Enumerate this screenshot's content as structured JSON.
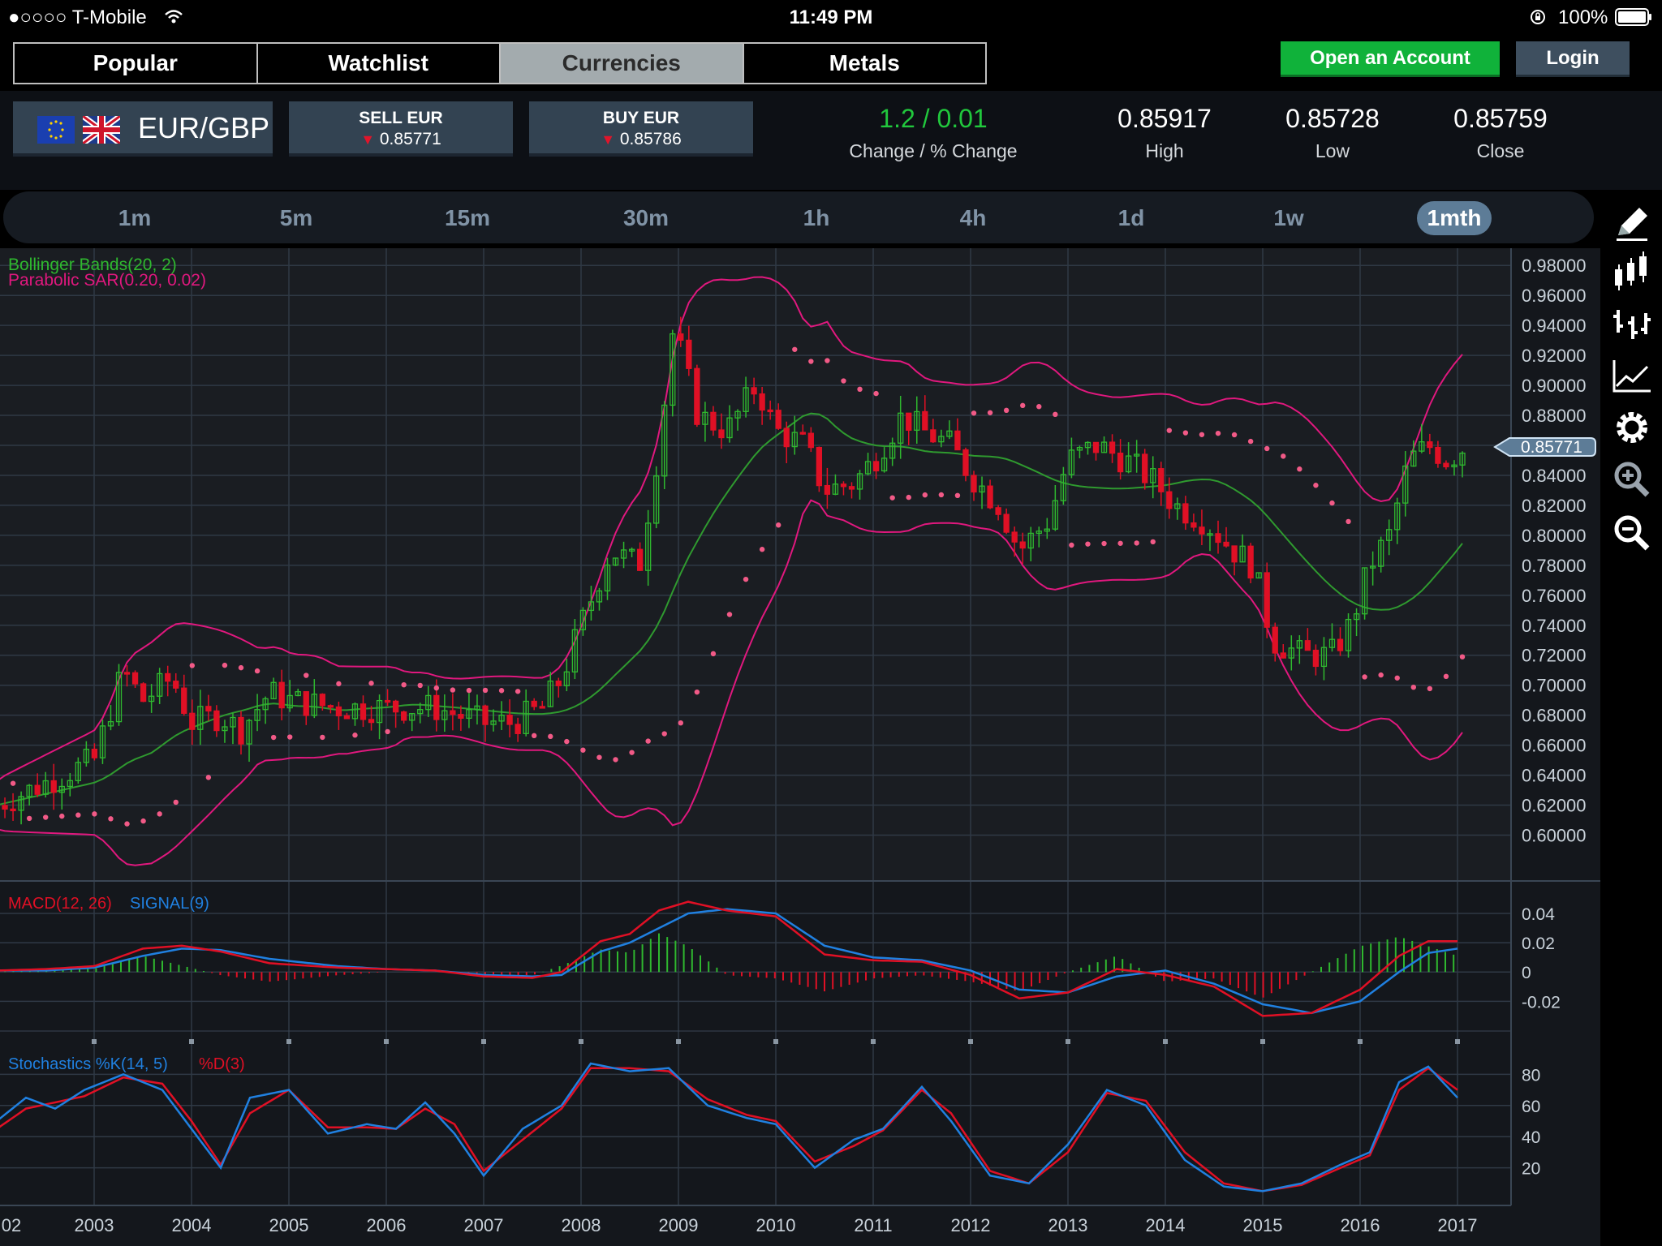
{
  "status_bar": {
    "carrier": "●○○○○ T-Mobile",
    "wifi_icon": "wifi-icon",
    "time": "11:49 PM",
    "battery": "100%",
    "lock_icon": "rotation-lock-icon"
  },
  "top_tabs": [
    {
      "label": "Popular",
      "active": false
    },
    {
      "label": "Watchlist",
      "active": false
    },
    {
      "label": "Currencies",
      "active": true
    },
    {
      "label": "Metals",
      "active": false
    }
  ],
  "account": {
    "open_label": "Open an Account",
    "login_label": "Login"
  },
  "instrument": {
    "pair": "EUR/GBP",
    "sell_label": "SELL EUR",
    "sell_price": "0.85771",
    "buy_label": "BUY EUR",
    "buy_price": "0.85786",
    "change_value": "1.2 / 0.01",
    "change_label": "Change / % Change",
    "high_value": "0.85917",
    "high_label": "High",
    "low_value": "0.85728",
    "low_label": "Low",
    "close_value": "0.85759",
    "close_label": "Close"
  },
  "timeframes": [
    {
      "label": "1m",
      "active": false
    },
    {
      "label": "5m",
      "active": false
    },
    {
      "label": "15m",
      "active": false
    },
    {
      "label": "30m",
      "active": false
    },
    {
      "label": "1h",
      "active": false
    },
    {
      "label": "4h",
      "active": false
    },
    {
      "label": "1d",
      "active": false
    },
    {
      "label": "1w",
      "active": false
    },
    {
      "label": "1mth",
      "active": true
    }
  ],
  "tools": [
    "pencil-icon",
    "candlestick-icon",
    "ohlc-bars-icon",
    "line-chart-icon",
    "gear-icon",
    "zoom-in-icon",
    "zoom-out-icon"
  ],
  "colors": {
    "up": "#2fb82f",
    "down": "#e01025",
    "bollinger": "#e0187e",
    "bollinger_mid": "#2f9a2f",
    "sar": "#f25a87",
    "macd": "#e01025",
    "signal": "#2080e0",
    "green_btn": "#10b23a",
    "panel": "#334352"
  },
  "chart_data": [
    {
      "type": "candlestick",
      "title": "",
      "indicator_labels": [
        "Bollinger Bands(20, 2)",
        "Parabolic SAR(0.20, 0.02)"
      ],
      "current_price_label": "0.85771",
      "current_price": 0.85771,
      "ylim": [
        0.59,
        0.985
      ],
      "y_ticks": [
        "0.98000",
        "0.96000",
        "0.94000",
        "0.92000",
        "0.90000",
        "0.88000",
        "0.86000",
        "0.84000",
        "0.82000",
        "0.80000",
        "0.78000",
        "0.76000",
        "0.74000",
        "0.72000",
        "0.70000",
        "0.68000",
        "0.66000",
        "0.64000",
        "0.62000",
        "0.60000"
      ],
      "x_ticks": [
        "02",
        "2003",
        "2004",
        "2005",
        "2006",
        "2007",
        "2008",
        "2009",
        "2010",
        "2011",
        "2012",
        "2013",
        "2014",
        "2015",
        "2016",
        "2017"
      ],
      "close_series": {
        "x": [
          2002.0,
          2002.5,
          2003.0,
          2003.3,
          2003.5,
          2003.8,
          2004.0,
          2004.3,
          2004.5,
          2004.8,
          2005.0,
          2005.5,
          2006.0,
          2006.5,
          2007.0,
          2007.3,
          2007.6,
          2007.8,
          2008.0,
          2008.3,
          2008.6,
          2008.8,
          2008.95,
          2009.2,
          2009.5,
          2009.8,
          2010.0,
          2010.3,
          2010.5,
          2010.8,
          2011.0,
          2011.3,
          2011.5,
          2011.8,
          2012.0,
          2012.3,
          2012.5,
          2012.8,
          2013.0,
          2013.3,
          2013.6,
          2013.9,
          2014.1,
          2014.4,
          2014.7,
          2014.9,
          2015.1,
          2015.4,
          2015.7,
          2015.9,
          2016.1,
          2016.3,
          2016.5,
          2016.7,
          2016.9,
          2017.05
        ],
        "y": [
          0.62,
          0.635,
          0.65,
          0.71,
          0.69,
          0.705,
          0.675,
          0.68,
          0.67,
          0.695,
          0.69,
          0.685,
          0.685,
          0.685,
          0.675,
          0.675,
          0.685,
          0.705,
          0.74,
          0.79,
          0.78,
          0.86,
          0.94,
          0.88,
          0.87,
          0.9,
          0.87,
          0.86,
          0.83,
          0.835,
          0.85,
          0.88,
          0.87,
          0.86,
          0.84,
          0.82,
          0.79,
          0.81,
          0.85,
          0.86,
          0.85,
          0.835,
          0.82,
          0.81,
          0.79,
          0.78,
          0.73,
          0.72,
          0.72,
          0.74,
          0.78,
          0.8,
          0.85,
          0.86,
          0.85,
          0.858
        ]
      }
    },
    {
      "type": "line",
      "legend": [
        "MACD(12, 26)",
        "SIGNAL(9)"
      ],
      "y_ticks": [
        "0.04",
        "0.02",
        "0",
        "-0.02"
      ],
      "ylim": [
        -0.032,
        0.05
      ],
      "series": [
        {
          "name": "MACD(12, 26)",
          "x": [
            2002.0,
            2002.5,
            2003.0,
            2003.5,
            2003.9,
            2004.3,
            2004.8,
            2005.5,
            2006.0,
            2006.5,
            2007.0,
            2007.5,
            2007.8,
            2008.2,
            2008.5,
            2008.8,
            2009.1,
            2009.5,
            2010.0,
            2010.5,
            2011.0,
            2011.5,
            2012.0,
            2012.5,
            2013.0,
            2013.5,
            2014.0,
            2014.5,
            2015.0,
            2015.5,
            2016.0,
            2016.4,
            2016.7,
            2017.0
          ],
          "y": [
            0.001,
            0.002,
            0.004,
            0.016,
            0.018,
            0.014,
            0.006,
            0.003,
            0.002,
            0.001,
            -0.003,
            -0.004,
            0.0,
            0.021,
            0.026,
            0.042,
            0.048,
            0.042,
            0.038,
            0.012,
            0.008,
            0.007,
            -0.002,
            -0.018,
            -0.014,
            0.002,
            -0.002,
            -0.01,
            -0.03,
            -0.028,
            -0.012,
            0.011,
            0.021,
            0.021
          ]
        },
        {
          "name": "SIGNAL(9)",
          "x": [
            2002.0,
            2002.5,
            2003.0,
            2003.5,
            2003.9,
            2004.3,
            2004.8,
            2005.5,
            2006.0,
            2006.5,
            2007.0,
            2007.5,
            2007.8,
            2008.2,
            2008.5,
            2008.8,
            2009.1,
            2009.5,
            2010.0,
            2010.5,
            2011.0,
            2011.5,
            2012.0,
            2012.5,
            2013.0,
            2013.5,
            2014.0,
            2014.5,
            2015.0,
            2015.5,
            2016.0,
            2016.4,
            2016.7,
            2017.0
          ],
          "y": [
            0.001,
            0.001,
            0.003,
            0.011,
            0.016,
            0.015,
            0.009,
            0.004,
            0.002,
            0.001,
            -0.002,
            -0.003,
            -0.002,
            0.014,
            0.02,
            0.03,
            0.04,
            0.043,
            0.04,
            0.018,
            0.01,
            0.008,
            0.001,
            -0.012,
            -0.014,
            -0.003,
            0.001,
            -0.008,
            -0.022,
            -0.028,
            -0.02,
            0.0,
            0.013,
            0.016
          ]
        }
      ]
    },
    {
      "type": "line",
      "legend": [
        "Stochastics %K(14, 5)",
        "%D(3)"
      ],
      "y_ticks": [
        "80",
        "60",
        "40",
        "20"
      ],
      "ylim": [
        0,
        100
      ],
      "series": [
        {
          "name": "Stochastics %K(14, 5)",
          "x": [
            2002.0,
            2002.3,
            2002.6,
            2002.9,
            2003.3,
            2003.7,
            2004.0,
            2004.3,
            2004.6,
            2005.0,
            2005.4,
            2005.8,
            2006.1,
            2006.4,
            2006.7,
            2007.0,
            2007.4,
            2007.8,
            2008.1,
            2008.5,
            2008.9,
            2009.3,
            2009.7,
            2010.0,
            2010.4,
            2010.8,
            2011.1,
            2011.5,
            2011.8,
            2012.2,
            2012.6,
            2013.0,
            2013.4,
            2013.8,
            2014.2,
            2014.6,
            2015.0,
            2015.4,
            2015.8,
            2016.1,
            2016.4,
            2016.7,
            2017.0
          ],
          "y": [
            50,
            65,
            58,
            70,
            80,
            70,
            45,
            20,
            65,
            70,
            42,
            48,
            45,
            62,
            42,
            15,
            45,
            60,
            87,
            82,
            84,
            60,
            52,
            48,
            20,
            38,
            45,
            72,
            50,
            15,
            10,
            35,
            70,
            60,
            25,
            8,
            5,
            10,
            22,
            30,
            75,
            85,
            65
          ]
        },
        {
          "name": "%D(3)",
          "x": [
            2002.0,
            2002.3,
            2002.6,
            2002.9,
            2003.3,
            2003.7,
            2004.0,
            2004.3,
            2004.6,
            2005.0,
            2005.4,
            2005.8,
            2006.1,
            2006.4,
            2006.7,
            2007.0,
            2007.4,
            2007.8,
            2008.1,
            2008.5,
            2008.9,
            2009.3,
            2009.7,
            2010.0,
            2010.4,
            2010.8,
            2011.1,
            2011.5,
            2011.8,
            2012.2,
            2012.6,
            2013.0,
            2013.4,
            2013.8,
            2014.2,
            2014.6,
            2015.0,
            2015.4,
            2015.8,
            2016.1,
            2016.4,
            2016.7,
            2017.0
          ],
          "y": [
            45,
            58,
            62,
            66,
            78,
            74,
            50,
            22,
            55,
            70,
            46,
            46,
            45,
            58,
            48,
            18,
            38,
            58,
            84,
            84,
            82,
            64,
            54,
            50,
            24,
            34,
            44,
            70,
            55,
            18,
            10,
            30,
            68,
            63,
            30,
            10,
            5,
            9,
            20,
            28,
            70,
            84,
            70
          ]
        }
      ]
    }
  ]
}
